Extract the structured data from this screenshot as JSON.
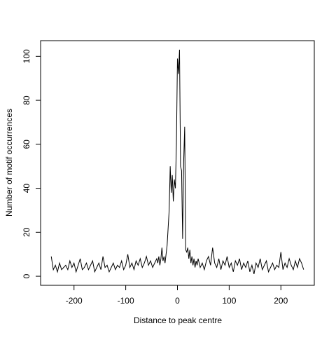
{
  "chart_data": {
    "type": "line",
    "x_label": "Distance to peak centre",
    "y_label": "Number of motif occurrences",
    "xlim": [
      -264.6,
      264.6
    ],
    "xticks": [
      -200,
      -100,
      0,
      100,
      200
    ],
    "ylim": [
      -4.12,
      107.12
    ],
    "yticks": [
      0,
      20,
      40,
      60,
      80,
      100
    ],
    "x": [
      -244,
      -240,
      -236,
      -232,
      -228,
      -224,
      -220,
      -216,
      -212,
      -208,
      -204,
      -200,
      -196,
      -192,
      -188,
      -184,
      -180,
      -176,
      -172,
      -168,
      -164,
      -160,
      -156,
      -152,
      -148,
      -144,
      -140,
      -136,
      -132,
      -128,
      -124,
      -120,
      -116,
      -112,
      -108,
      -104,
      -100,
      -96,
      -92,
      -88,
      -84,
      -80,
      -76,
      -72,
      -68,
      -64,
      -60,
      -56,
      -52,
      -48,
      -44,
      -40,
      -38,
      -36,
      -34,
      -32,
      -30,
      -28,
      -26,
      -24,
      -22,
      -20,
      -18,
      -16,
      -14,
      -12,
      -10,
      -8,
      -6,
      -4,
      -2,
      0,
      2,
      4,
      6,
      8,
      10,
      12,
      14,
      16,
      18,
      20,
      22,
      24,
      26,
      28,
      30,
      32,
      34,
      36,
      38,
      40,
      44,
      48,
      52,
      56,
      60,
      64,
      68,
      72,
      76,
      80,
      84,
      88,
      92,
      96,
      100,
      104,
      108,
      112,
      116,
      120,
      124,
      128,
      132,
      136,
      140,
      144,
      148,
      152,
      156,
      160,
      164,
      168,
      172,
      176,
      180,
      184,
      188,
      192,
      196,
      200,
      204,
      208,
      212,
      216,
      220,
      224,
      228,
      232,
      236,
      240,
      244
    ],
    "series": [
      {
        "color": "#000000",
        "values": [
          9,
          3,
          5,
          2,
          6,
          3,
          4,
          5,
          3,
          7,
          4,
          6,
          2,
          5,
          8,
          3,
          4,
          6,
          3,
          5,
          7,
          2,
          4,
          6,
          3,
          9,
          4,
          5,
          2,
          4,
          6,
          3,
          5,
          4,
          7,
          3,
          5,
          10,
          4,
          6,
          3,
          7,
          5,
          8,
          4,
          6,
          9,
          5,
          7,
          4,
          6,
          8,
          6,
          9,
          5,
          8,
          13,
          7,
          9,
          6,
          10,
          14,
          22,
          30,
          50,
          38,
          46,
          34,
          44,
          40,
          60,
          99,
          92,
          103,
          50,
          48,
          17,
          52,
          68,
          12,
          11,
          13,
          8,
          12,
          6,
          9,
          5,
          8,
          4,
          7,
          5,
          8,
          4,
          6,
          3,
          7,
          9,
          5,
          13,
          6,
          4,
          8,
          3,
          7,
          5,
          9,
          4,
          6,
          2,
          7,
          5,
          8,
          3,
          6,
          4,
          7,
          2,
          5,
          1,
          6,
          4,
          8,
          3,
          5,
          7,
          2,
          4,
          6,
          3,
          5,
          4,
          11,
          3,
          6,
          4,
          8,
          5,
          3,
          7,
          4,
          8,
          6,
          3
        ]
      }
    ]
  }
}
